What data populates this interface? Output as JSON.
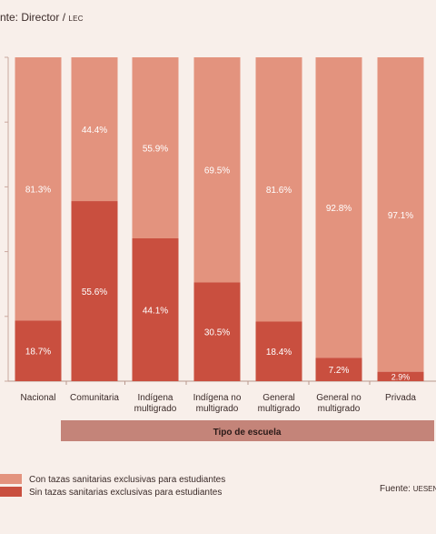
{
  "header": {
    "label": "nte: Director /",
    "source_small": "LEC"
  },
  "footer": {
    "source_label": "Fuente:",
    "source_small": "UESEN"
  },
  "chart_data": {
    "type": "bar",
    "stacked": true,
    "categories": [
      "Nacional",
      "Comunitaria",
      "Indígena multigrado",
      "Indígena no multigrado",
      "General multigrado",
      "General no multigrado",
      "Privada"
    ],
    "category_lines": [
      [
        "Nacional"
      ],
      [
        "Comunitaria"
      ],
      [
        "Indígena",
        "multigrado"
      ],
      [
        "Indígena no",
        "multigrado"
      ],
      [
        "General",
        "multigrado"
      ],
      [
        "General no",
        "multigrado"
      ],
      [
        "Privada"
      ]
    ],
    "series": [
      {
        "name": "Sin tazas sanitarias exclusivas para estudiantes",
        "color": "#c94f3f",
        "values": [
          18.7,
          55.6,
          44.1,
          30.5,
          18.4,
          7.2,
          2.9
        ]
      },
      {
        "name": "Con tazas sanitarias exclusivas para estudiantes",
        "color": "#e3937e",
        "values": [
          81.3,
          44.4,
          55.9,
          69.5,
          81.6,
          92.8,
          97.1
        ]
      }
    ],
    "xlabel": "Tipo de escuela",
    "ylim": [
      0,
      100
    ],
    "legend_position": "bottom-left"
  }
}
